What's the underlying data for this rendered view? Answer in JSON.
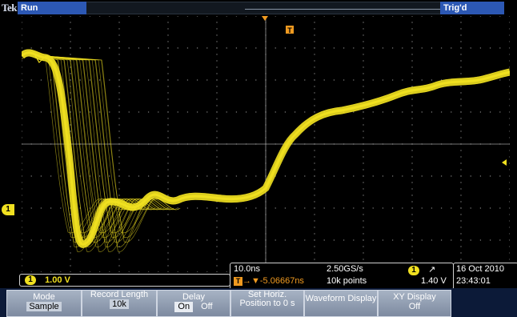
{
  "header": {
    "brand": "Tek",
    "run_label": "Run",
    "trigger_status": "Trig'd"
  },
  "ch1_marker": "1",
  "ch1_scale": {
    "badge": "1",
    "value": "1.00 V"
  },
  "horizontal": {
    "time_per_div": "10.0ns",
    "sample_rate": "2.50GS/s",
    "trigger_marker": "T",
    "position": "→▼-5.06667ns",
    "record": "10k points",
    "trigger_ch": "1",
    "slope": "⁄",
    "trigger_level": "1.40 V"
  },
  "datetime": {
    "date": "16 Oct 2010",
    "time": "23:43:01"
  },
  "menu": {
    "mode": {
      "label": "Mode",
      "value": "Sample"
    },
    "record_length": {
      "label": "Record Length",
      "value": "10k"
    },
    "delay": {
      "label": "Delay",
      "on": "On",
      "off": "Off"
    },
    "set_horiz": {
      "label": "Set Horiz. Position to 0 s"
    },
    "waveform_display": {
      "label": "Waveform Display"
    },
    "xy_display": {
      "label": "XY Display",
      "value": "Off"
    }
  },
  "colors": {
    "trace": "#f0e020",
    "grid": "#7a7a7a",
    "accent": "#2c58b4"
  }
}
